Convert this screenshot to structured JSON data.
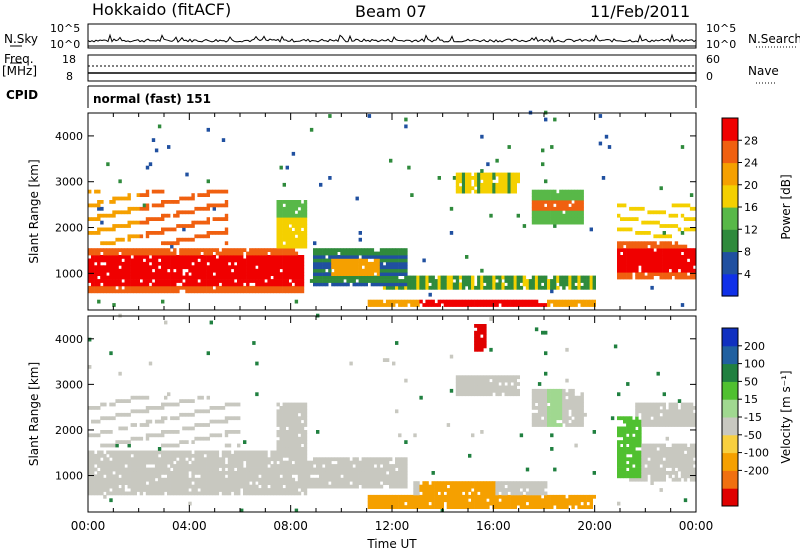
{
  "header": {
    "radar": "Hokkaido (fitACF)",
    "beam": "Beam 07",
    "date": "11/Feb/2011"
  },
  "top_panels": {
    "nsky_label": "N.Sky",
    "nsky_ticks": [
      "10^5",
      "10^0"
    ],
    "nsearch_label": "N.Search",
    "nsearch_ticks": [
      "10^5",
      "10^0"
    ],
    "freq_label": "Freq.",
    "freq_unit": "[MHz]",
    "freq_ticks": [
      "18",
      "8"
    ],
    "nave_label": "Nave",
    "nave_ticks": [
      "60",
      "0"
    ],
    "cpid_label": "CPID",
    "cpid_value": "normal (fast) 151"
  },
  "colors": {
    "power": [
      "#1030e8",
      "#2050a0",
      "#2f8a3c",
      "#58b848",
      "#f4d000",
      "#f5a000",
      "#f06010",
      "#f00000"
    ],
    "velocity": [
      "#e00000",
      "#f07010",
      "#f5a000",
      "#f8d040",
      "#c8c8c0",
      "#a0d890",
      "#50c030",
      "#208040",
      "#2060a0",
      "#1030c0"
    ]
  },
  "chart_data": [
    {
      "type": "heatmap",
      "panel": "power",
      "ylabel": "Slant Range [km]",
      "y_ticks": [
        "1000",
        "2000",
        "3000",
        "4000"
      ],
      "ylim": [
        200,
        4500
      ],
      "colorbar_label": "Power [dB]",
      "colorbar_ticks": [
        "4",
        "8",
        "12",
        "16",
        "20",
        "24",
        "28"
      ],
      "x_ticks": [
        "00:00",
        "04:00",
        "08:00",
        "12:00",
        "16:00",
        "20:00",
        "00:00"
      ],
      "xlabel": ""
    },
    {
      "type": "heatmap",
      "panel": "velocity",
      "ylabel": "Slant Range [km]",
      "y_ticks": [
        "1000",
        "2000",
        "3000",
        "4000"
      ],
      "ylim": [
        200,
        4500
      ],
      "colorbar_label": "Velocity [m s⁻¹]",
      "colorbar_ticks": [
        "200",
        "100",
        "50",
        "15",
        "-15",
        "-50",
        "-100",
        "-200"
      ],
      "x_ticks": [
        "00:00",
        "04:00",
        "08:00",
        "12:00",
        "16:00",
        "20:00",
        "00:00"
      ],
      "xlabel": "Time UT"
    }
  ]
}
